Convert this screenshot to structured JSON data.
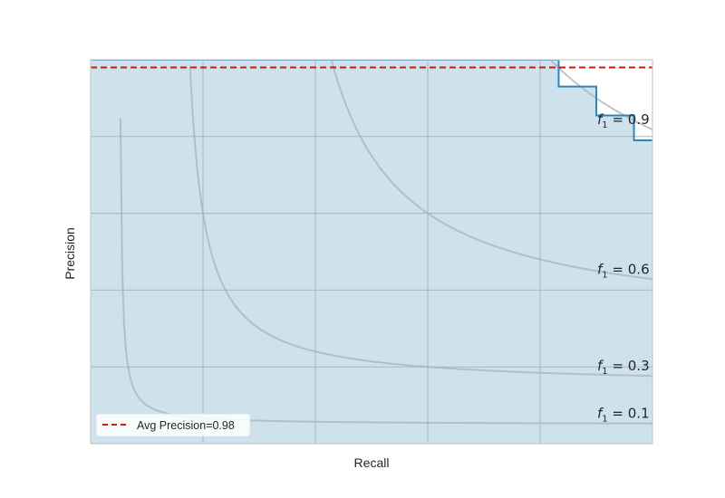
{
  "chart_data": {
    "type": "line",
    "xlabel": "Recall",
    "ylabel": "Precision",
    "xlim": [
      0,
      1
    ],
    "ylim": [
      0,
      1
    ],
    "grid": true,
    "legend_placement": "lower-left",
    "colors": {
      "background": "#cde2ec",
      "grid": "#a6b7c1",
      "pr_curve": "#2d86b7",
      "avg_precision_line": "#cc1a0f",
      "iso_f1": "#a7b3ba",
      "unfilled_region": "#ffffff"
    },
    "iso_f1_curves": [
      {
        "f1": 0.1,
        "prefix": "f",
        "subscript": "1",
        "value_text": " = 0.1"
      },
      {
        "f1": 0.3,
        "prefix": "f",
        "subscript": "1",
        "value_text": " = 0.3"
      },
      {
        "f1": 0.6,
        "prefix": "f",
        "subscript": "1",
        "value_text": " = 0.6"
      },
      {
        "f1": 0.9,
        "prefix": "f",
        "subscript": "1",
        "value_text": " = 0.9"
      }
    ],
    "series": [
      {
        "name": "",
        "kind": "step",
        "recall": [
          0.0,
          0.833,
          0.833,
          0.9,
          0.9,
          0.967,
          0.967,
          1.0
        ],
        "precision": [
          1.0,
          1.0,
          0.93,
          0.93,
          0.855,
          0.855,
          0.79,
          0.79
        ]
      },
      {
        "name": "Avg Precision=0.98",
        "kind": "hline",
        "value": 0.98
      }
    ],
    "legend": [
      {
        "label": "Avg Precision=0.98",
        "style": "dashed",
        "color": "#cc1a0f"
      }
    ]
  }
}
